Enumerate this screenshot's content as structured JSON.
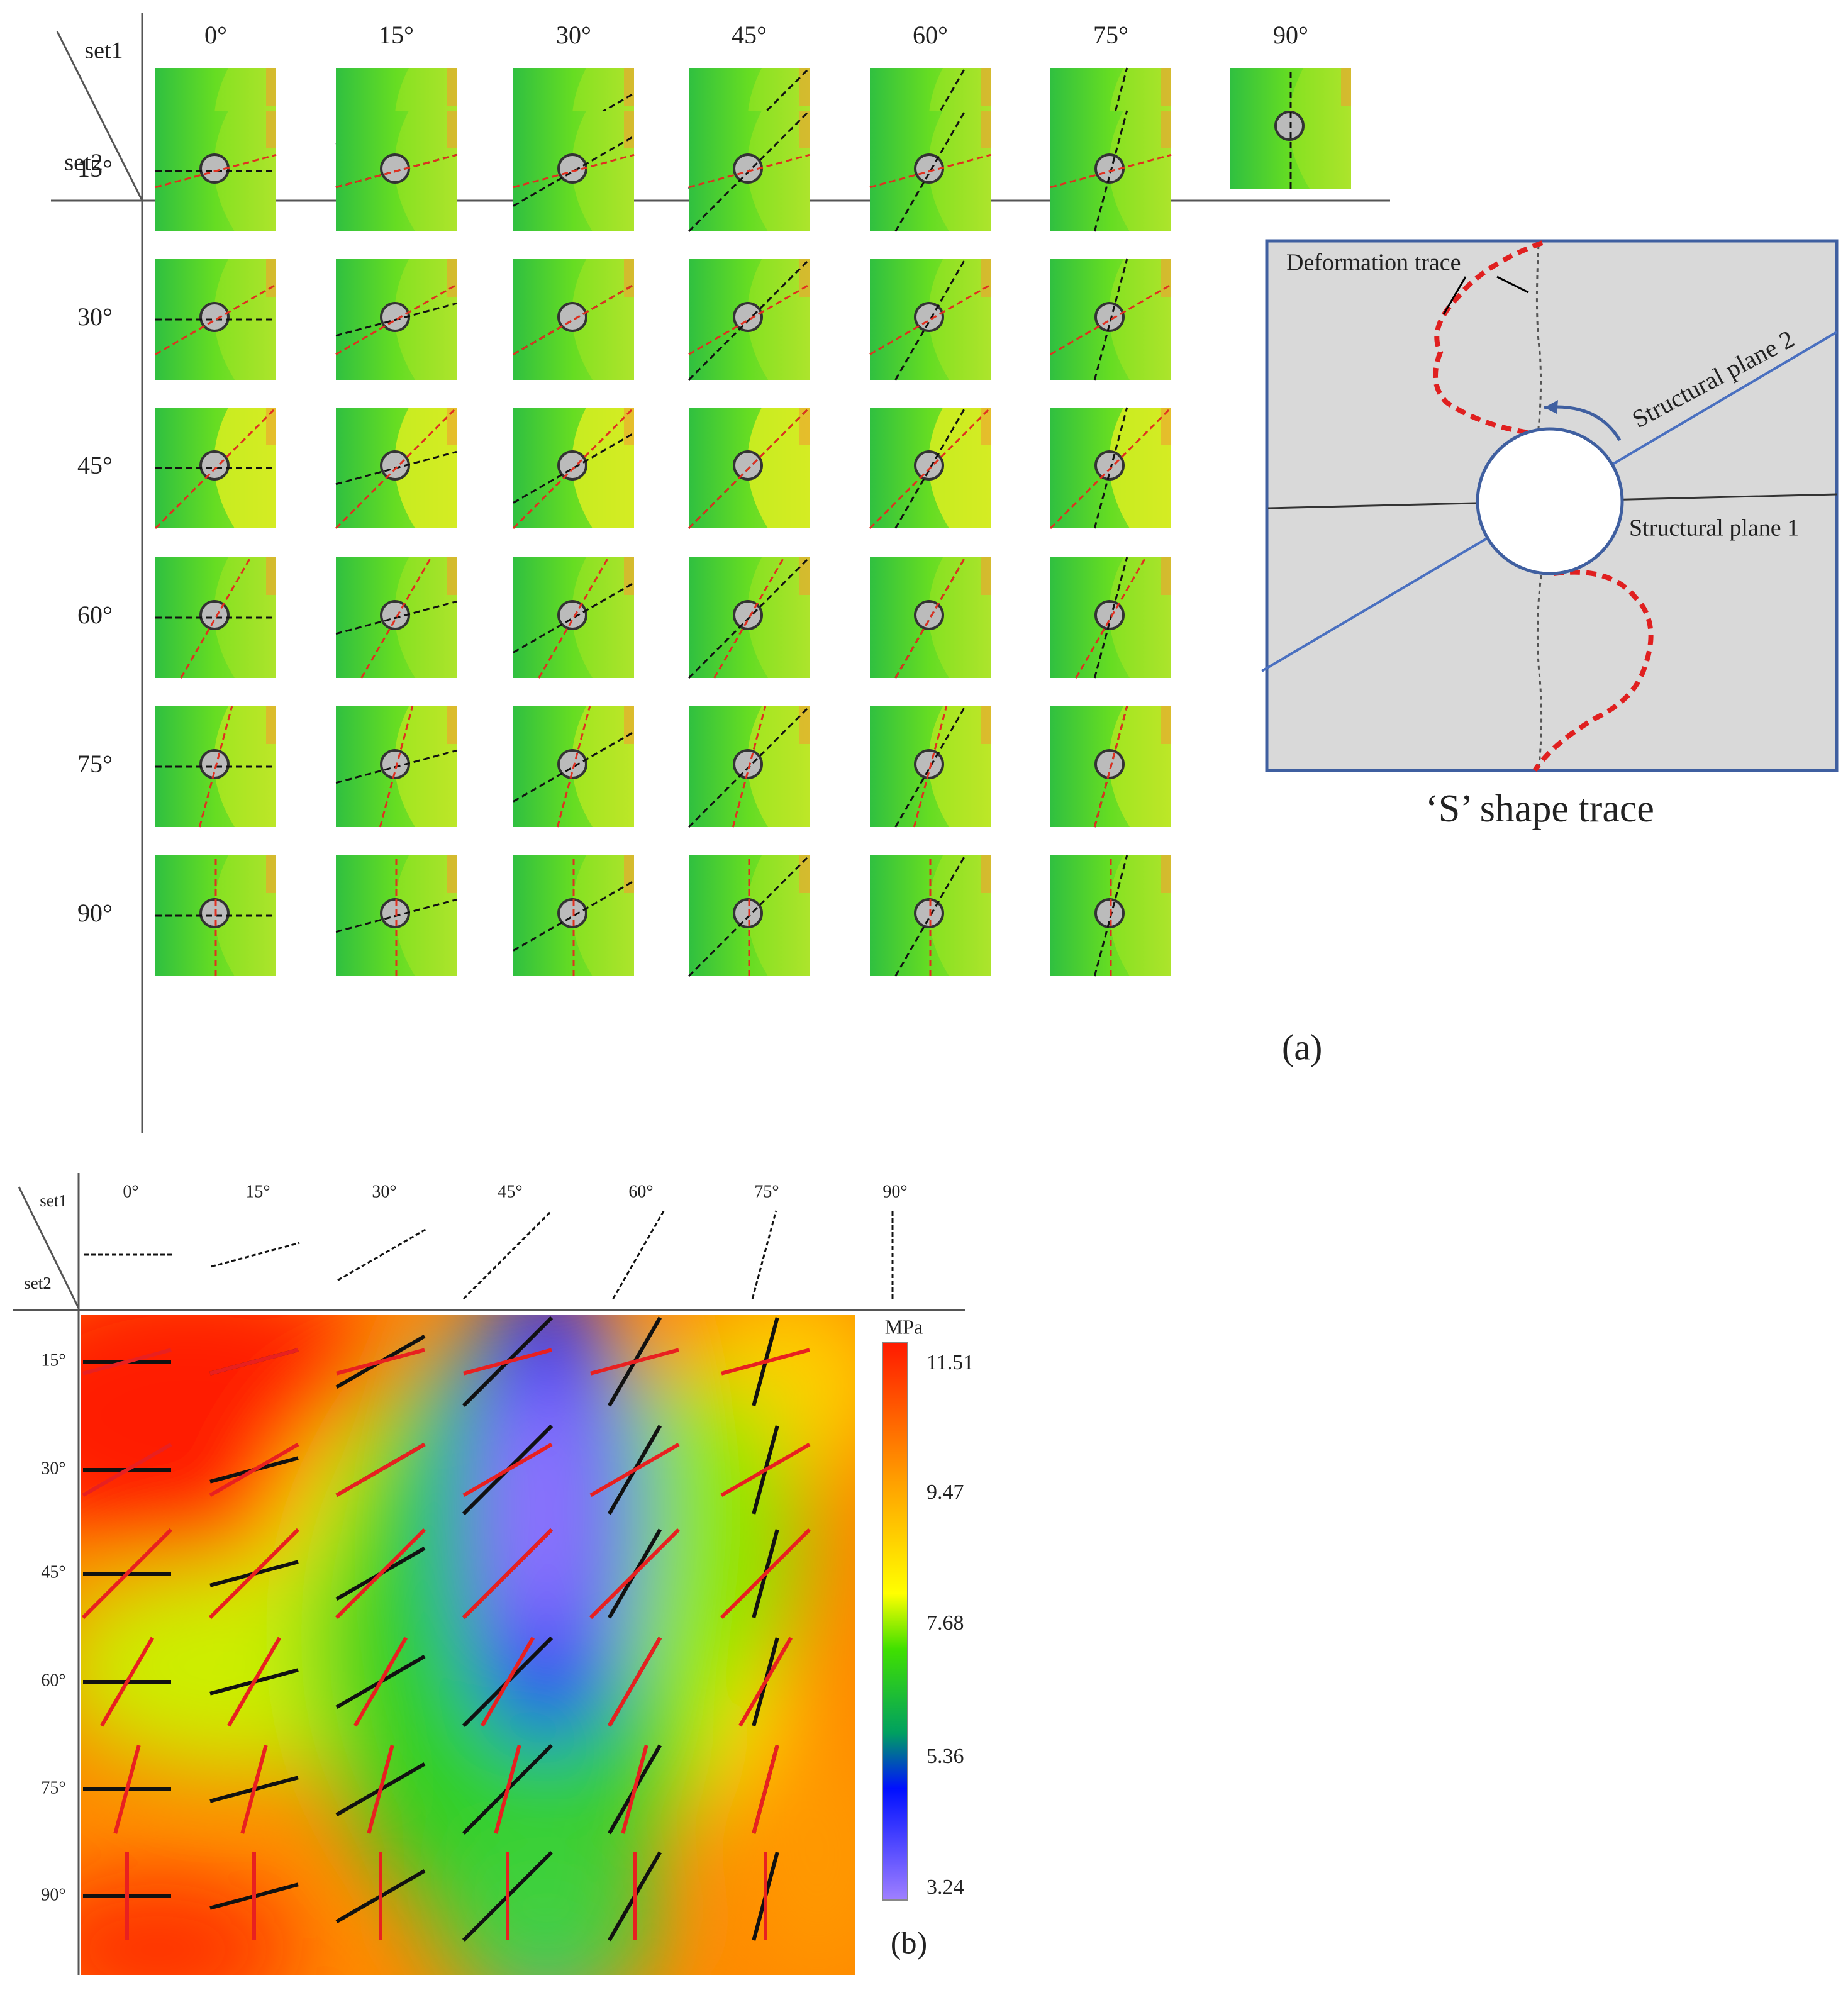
{
  "panel_a": {
    "set1_label": "set1",
    "set2_label": "set2",
    "column_headers": [
      "0°",
      "15°",
      "30°",
      "45°",
      "60°",
      "75°",
      "90°"
    ],
    "row_headers": [
      "15°",
      "30°",
      "45°",
      "60°",
      "75°",
      "90°"
    ],
    "schematic": {
      "deformation_label": "Deformation trace",
      "plane2_label": "Structural plane 2",
      "plane1_label": "Structural plane 1",
      "caption": "‘S’ shape trace"
    },
    "panel_label": "(a)"
  },
  "panel_b": {
    "set1_label": "set1",
    "set2_label": "set2",
    "column_headers": [
      "0°",
      "15°",
      "30°",
      "45°",
      "60°",
      "75°",
      "90°"
    ],
    "row_headers": [
      "15°",
      "30°",
      "45°",
      "60°",
      "75°",
      "90°"
    ],
    "colorbar": {
      "unit": "MPa",
      "ticks": [
        "11.51",
        "9.47",
        "7.68",
        "5.36",
        "3.24"
      ]
    },
    "panel_label": "(b)"
  }
}
